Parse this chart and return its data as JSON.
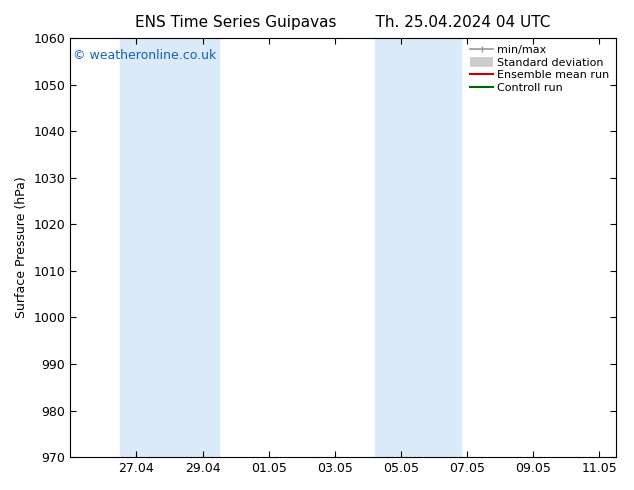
{
  "title": "ENS Time Series Guipavas        Th. 25.04.2024 04 UTC",
  "ylabel": "Surface Pressure (hPa)",
  "ylim": [
    970,
    1060
  ],
  "yticks": [
    970,
    980,
    990,
    1000,
    1010,
    1020,
    1030,
    1040,
    1050,
    1060
  ],
  "xlim_left": 0.0,
  "xlim_right": 16.5,
  "xtick_labels": [
    "27.04",
    "29.04",
    "01.05",
    "03.05",
    "05.05",
    "07.05",
    "09.05",
    "11.05"
  ],
  "xtick_positions": [
    2,
    4,
    6,
    8,
    10,
    12,
    14,
    16
  ],
  "shaded_bands": [
    {
      "x_start": 1.5,
      "x_end": 4.5,
      "color": "#daeaf8"
    },
    {
      "x_start": 9.2,
      "x_end": 11.8,
      "color": "#daeaf8"
    }
  ],
  "watermark_text": "© weatheronline.co.uk",
  "watermark_color": "#1a5fb4",
  "legend_items": [
    {
      "label": "min/max",
      "color": "#999999",
      "lw": 1.2
    },
    {
      "label": "Standard deviation",
      "color": "#cccccc",
      "lw": 7
    },
    {
      "label": "Ensemble mean run",
      "color": "#cc0000",
      "lw": 1.5
    },
    {
      "label": "Controll run",
      "color": "#006600",
      "lw": 1.5
    }
  ],
  "bg_color": "#ffffff",
  "plot_bg_color": "#ffffff",
  "title_fontsize": 11,
  "ylabel_fontsize": 9,
  "tick_fontsize": 9,
  "watermark_fontsize": 9,
  "legend_fontsize": 8
}
